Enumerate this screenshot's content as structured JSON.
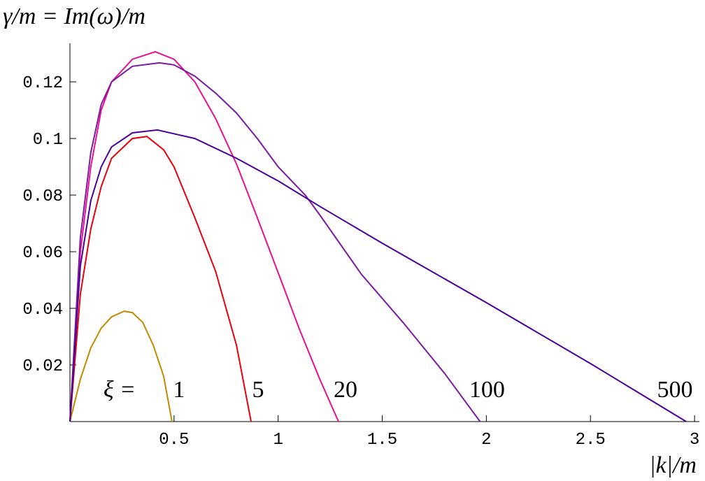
{
  "chart_data": {
    "type": "line",
    "title": "γ/m = Im(ω)/m",
    "x_label": "|k|/m",
    "annotation": "ξ =",
    "xlim": [
      0,
      3.02
    ],
    "ylim": [
      0,
      0.1336
    ],
    "xticks": [
      0.5,
      1,
      1.5,
      2,
      2.5,
      3
    ],
    "yticks": [
      0.02,
      0.04,
      0.06,
      0.08,
      0.1,
      0.12
    ],
    "series": [
      {
        "name": "1",
        "color": "#c08a00",
        "x": [
          0,
          0.05,
          0.1,
          0.15,
          0.2,
          0.26,
          0.3,
          0.35,
          0.4,
          0.45,
          0.49
        ],
        "values": [
          0,
          0.015,
          0.026,
          0.033,
          0.037,
          0.039,
          0.0385,
          0.035,
          0.027,
          0.016,
          0
        ]
      },
      {
        "name": "5",
        "color": "#e8000b",
        "x": [
          0,
          0.05,
          0.1,
          0.15,
          0.2,
          0.3,
          0.37,
          0.45,
          0.5,
          0.6,
          0.7,
          0.8,
          0.87
        ],
        "values": [
          0,
          0.045,
          0.068,
          0.083,
          0.093,
          0.1,
          0.1007,
          0.096,
          0.09,
          0.072,
          0.053,
          0.027,
          0
        ]
      },
      {
        "name": "20",
        "color": "#e8108c",
        "x": [
          0,
          0.05,
          0.1,
          0.15,
          0.2,
          0.3,
          0.41,
          0.5,
          0.6,
          0.7,
          0.8,
          0.9,
          1.0,
          1.1,
          1.2,
          1.29
        ],
        "values": [
          0,
          0.06,
          0.09,
          0.11,
          0.12,
          0.128,
          0.1306,
          0.128,
          0.12,
          0.107,
          0.091,
          0.072,
          0.0526,
          0.033,
          0.015,
          0
        ]
      },
      {
        "name": "100",
        "color": "#7a1aa0",
        "x": [
          0,
          0.05,
          0.1,
          0.15,
          0.2,
          0.3,
          0.43,
          0.5,
          0.6,
          0.7,
          0.8,
          0.9,
          1.0,
          1.13,
          1.2,
          1.4,
          1.6,
          1.8,
          1.97
        ],
        "values": [
          0,
          0.065,
          0.095,
          0.112,
          0.12,
          0.1255,
          0.1267,
          0.126,
          0.122,
          0.116,
          0.109,
          0.1,
          0.09,
          0.08,
          0.073,
          0.052,
          0.035,
          0.017,
          0
        ]
      },
      {
        "name": "500",
        "color": "#4b0099",
        "x": [
          0,
          0.05,
          0.1,
          0.15,
          0.2,
          0.3,
          0.42,
          0.6,
          0.8,
          1.0,
          1.2,
          1.5,
          2.0,
          2.5,
          2.96
        ],
        "values": [
          0,
          0.055,
          0.078,
          0.09,
          0.097,
          0.102,
          0.103,
          0.1,
          0.093,
          0.085,
          0.076,
          0.063,
          0.042,
          0.0205,
          0
        ]
      }
    ]
  }
}
